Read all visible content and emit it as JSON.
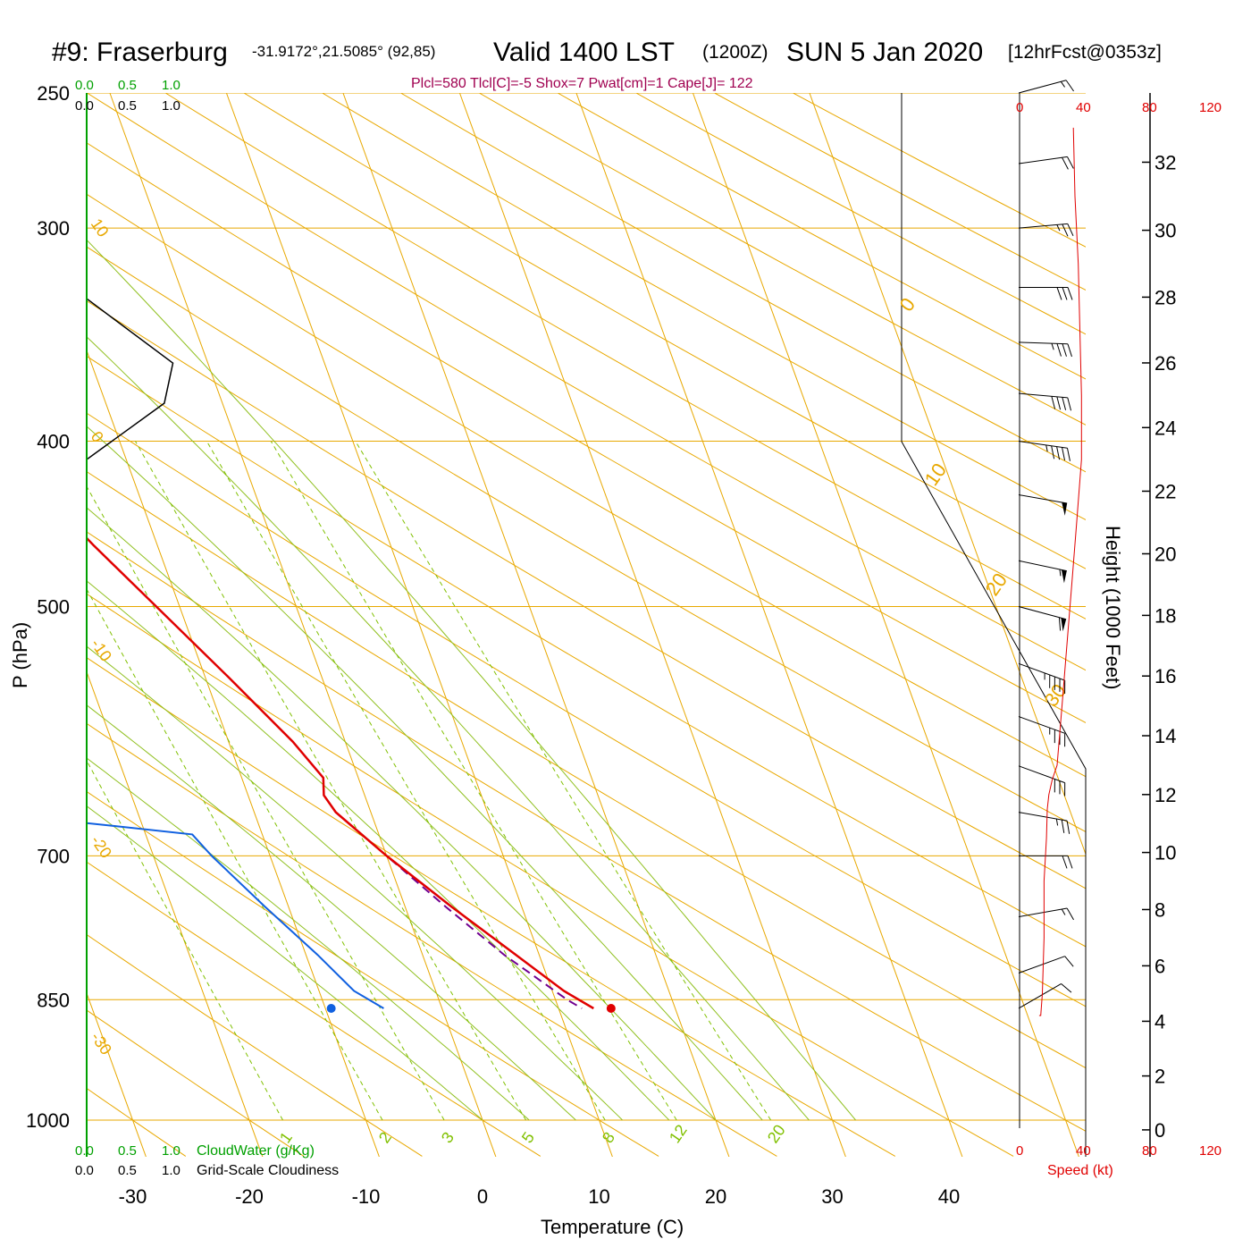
{
  "header": {
    "title": "#9: Fraserburg",
    "coords": "-31.9172°,21.5085° (92,85)",
    "valid": "Valid 1400 LST",
    "zulu": "(1200Z)",
    "date": "SUN 5 Jan 2020",
    "forecast": "[12hrFcst@0353z]",
    "indices": "Plcl=580 Tlcl[C]=-5 Shox=7 Pwat[cm]=1 Cape[J]= 122"
  },
  "scales": {
    "cloud_top": [
      "0.0",
      "0.5",
      "1.0"
    ],
    "grid_top": [
      "0.0",
      "0.5",
      "1.0"
    ],
    "cloud_bottom": [
      "0.0",
      "0.5",
      "1.0"
    ],
    "grid_bottom": [
      "0.0",
      "0.5",
      "1.0"
    ],
    "cloud_water_label": "CloudWater (g/Kg)",
    "grid_label": "Grid-Scale Cloudiness",
    "speed_ticks": [
      "0",
      "40",
      "80",
      "120"
    ],
    "speed_label": "Speed (kt)"
  },
  "axes": {
    "x_label": "Temperature (C)",
    "y_label": "P (hPa)",
    "height_label": "Height (1000 Feet)",
    "temp_ticks": [
      -30,
      -20,
      -10,
      0,
      10,
      20,
      30,
      40
    ],
    "pressure_ticks": [
      250,
      300,
      400,
      500,
      700,
      850,
      1000
    ],
    "height_ticks": [
      0,
      2,
      4,
      6,
      8,
      10,
      12,
      14,
      16,
      18,
      20,
      22,
      24,
      26,
      28,
      30,
      32
    ],
    "dry_adiabat_labels": [
      "10",
      "0",
      "-10",
      "-20",
      "-30"
    ],
    "isotherm_labels": [
      "0",
      "10",
      "20",
      "30"
    ],
    "mixing_ratio_labels": [
      "1",
      "2",
      "3",
      "5",
      "8",
      "12",
      "20"
    ]
  },
  "colors": {
    "temperature": "#e00000",
    "dewpoint": "#1060e0",
    "parcel": "#700090",
    "grid": "#e8a800",
    "moist_adiabat": "#90c020",
    "mixing_ratio": "#80c000",
    "cloud_axis": "#00a000",
    "indices": "#a00050",
    "speed": "#e00000"
  },
  "chart_data": {
    "type": "line",
    "temperature": [
      [
        250,
        -31.5
      ],
      [
        270,
        -30
      ],
      [
        290,
        -29
      ],
      [
        300,
        -28
      ],
      [
        320,
        -26.5
      ],
      [
        340,
        -25
      ],
      [
        360,
        -23.5
      ],
      [
        380,
        -22
      ],
      [
        400,
        -20.5
      ],
      [
        430,
        -18
      ],
      [
        460,
        -15.5
      ],
      [
        500,
        -12
      ],
      [
        550,
        -8
      ],
      [
        600,
        -4.5
      ],
      [
        630,
        -3
      ],
      [
        645,
        -3.5
      ],
      [
        660,
        -3
      ],
      [
        700,
        0
      ],
      [
        750,
        4
      ],
      [
        800,
        8
      ],
      [
        840,
        11
      ],
      [
        860,
        13
      ]
    ],
    "dewpoint": [
      [
        250,
        -63
      ],
      [
        270,
        -61
      ],
      [
        290,
        -60.5
      ],
      [
        300,
        -60
      ],
      [
        325,
        -55
      ],
      [
        350,
        -51
      ],
      [
        375,
        -46
      ],
      [
        410,
        -44
      ],
      [
        450,
        -44
      ],
      [
        500,
        -44
      ],
      [
        550,
        -46
      ],
      [
        600,
        -49
      ],
      [
        640,
        -43
      ],
      [
        660,
        -33
      ],
      [
        680,
        -16
      ],
      [
        700,
        -15
      ],
      [
        750,
        -12
      ],
      [
        800,
        -9
      ],
      [
        840,
        -7
      ],
      [
        860,
        -5
      ]
    ],
    "parcel": [
      [
        660,
        -3
      ],
      [
        700,
        0
      ],
      [
        750,
        3.5
      ],
      [
        800,
        7
      ],
      [
        850,
        11
      ],
      [
        860,
        12
      ]
    ],
    "surface_temperature": {
      "p": 860,
      "t": 14.5
    },
    "surface_dewpoint": {
      "p": 860,
      "t": -9.5
    },
    "cloud_cover_line": [
      [
        330,
        0.0
      ],
      [
        360,
        0.5
      ],
      [
        380,
        0.45
      ],
      [
        410,
        0.0
      ]
    ],
    "wind": [
      [
        250,
        255,
        15
      ],
      [
        275,
        262,
        20
      ],
      [
        300,
        265,
        25
      ],
      [
        325,
        270,
        30
      ],
      [
        350,
        272,
        35
      ],
      [
        375,
        275,
        40
      ],
      [
        400,
        278,
        45
      ],
      [
        430,
        280,
        50
      ],
      [
        470,
        282,
        55
      ],
      [
        500,
        285,
        60
      ],
      [
        540,
        290,
        45
      ],
      [
        580,
        290,
        35
      ],
      [
        620,
        290,
        30
      ],
      [
        660,
        280,
        25
      ],
      [
        700,
        270,
        20
      ],
      [
        760,
        260,
        15
      ],
      [
        820,
        250,
        12
      ],
      [
        860,
        240,
        10
      ]
    ],
    "speed_profile": [
      [
        0,
        12
      ],
      [
        1,
        12
      ],
      [
        3,
        13
      ],
      [
        5,
        14
      ],
      [
        7,
        15
      ],
      [
        9,
        15
      ],
      [
        10,
        16
      ],
      [
        10.5,
        16.5
      ],
      [
        11.5,
        17
      ],
      [
        12,
        18
      ],
      [
        12.5,
        20
      ],
      [
        13,
        23
      ],
      [
        15,
        26
      ],
      [
        17,
        29
      ],
      [
        19,
        32
      ],
      [
        21,
        35
      ],
      [
        23,
        38
      ],
      [
        25,
        38
      ],
      [
        27,
        37
      ],
      [
        29,
        36
      ],
      [
        31,
        34
      ],
      [
        33,
        33
      ]
    ]
  }
}
